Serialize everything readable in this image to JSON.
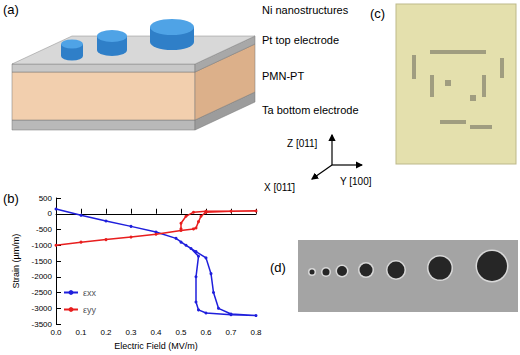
{
  "panel_labels": {
    "a": "(a)",
    "b": "(b)",
    "c": "(c)",
    "d": "(d)"
  },
  "schematic": {
    "layers": [
      "Ni nanostructures",
      "Pt top electrode",
      "PMN-PT",
      "Ta bottom electrode"
    ],
    "axes": {
      "z": "Z [011]",
      "x": "X [011̄]",
      "y": "Y [100]"
    }
  },
  "chart_data": {
    "type": "line",
    "xlabel": "Electric Field (MV/m)",
    "ylabel": "Strain (µm/m)",
    "xlim": [
      0,
      0.8
    ],
    "xticks": [
      {
        "value": 0,
        "label": "0.0"
      },
      {
        "value": 0.1,
        "label": "0.1"
      },
      {
        "value": 0.2,
        "label": "0.2"
      },
      {
        "value": 0.3,
        "label": "0.3"
      },
      {
        "value": 0.4,
        "label": "0.4"
      },
      {
        "value": 0.5,
        "label": "0.5"
      },
      {
        "value": 0.6,
        "label": "0.6"
      },
      {
        "value": 0.7,
        "label": "0.7"
      },
      {
        "value": 0.8,
        "label": "0.8"
      }
    ],
    "ylim": [
      -3500,
      500
    ],
    "yticks": [
      -3500,
      -3000,
      -2500,
      -2000,
      -1500,
      -1000,
      -500,
      0,
      500
    ],
    "grid": false,
    "legend": "lower left",
    "series": [
      {
        "name": "εxx",
        "color": "#1f1fdc",
        "marker": "circle",
        "x": [
          0,
          0.1,
          0.2,
          0.3,
          0.4,
          0.48,
          0.52,
          0.56,
          0.6,
          0.62,
          0.63,
          0.65,
          0.7,
          0.8,
          0.7,
          0.6,
          0.57,
          0.56,
          0.56,
          0.57,
          0.54,
          0.5
        ],
        "values": [
          150,
          -50,
          -230,
          -400,
          -580,
          -780,
          -1000,
          -1200,
          -1400,
          -1900,
          -2500,
          -3000,
          -3180,
          -3230,
          -3200,
          -3150,
          -3050,
          -2800,
          -2000,
          -1350,
          -1100,
          -900
        ]
      },
      {
        "name": "εyy",
        "color": "#e81e1e",
        "marker": "circle",
        "x": [
          0,
          0.1,
          0.2,
          0.3,
          0.4,
          0.5,
          0.55,
          0.56,
          0.57,
          0.58,
          0.6,
          0.7,
          0.8,
          0.6,
          0.55,
          0.52,
          0.5,
          0.5
        ],
        "values": [
          -1000,
          -900,
          -820,
          -740,
          -650,
          -530,
          -480,
          -450,
          -250,
          -80,
          50,
          80,
          90,
          80,
          50,
          -80,
          -300,
          -480
        ]
      }
    ]
  }
}
